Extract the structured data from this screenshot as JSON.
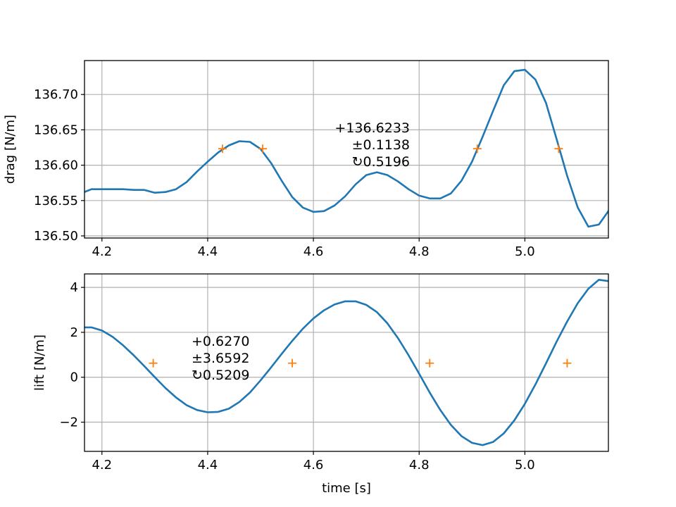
{
  "chart_data": [
    {
      "type": "line",
      "title": "",
      "xlabel": "",
      "ylabel": "drag [N/m]",
      "xlim": [
        4.167,
        5.158
      ],
      "ylim": [
        136.497,
        136.748
      ],
      "xticks": [
        4.2,
        4.4,
        4.6,
        4.8,
        5.0
      ],
      "xtick_labels": [
        "4.2",
        "4.4",
        "4.6",
        "4.8",
        "5.0"
      ],
      "yticks": [
        136.5,
        136.55,
        136.6,
        136.65,
        136.7
      ],
      "ytick_labels": [
        "136.50",
        "136.55",
        "136.60",
        "136.65",
        "136.70"
      ],
      "grid": true,
      "line_color": "#1f77b4",
      "marker_color": "#ff7f0e",
      "series": [
        {
          "x": [
            4.167,
            4.18,
            4.2,
            4.22,
            4.24,
            4.26,
            4.28,
            4.3,
            4.32,
            4.34,
            4.36,
            4.38,
            4.4,
            4.42,
            4.44,
            4.46,
            4.48,
            4.5,
            4.52,
            4.54,
            4.56,
            4.58,
            4.6,
            4.62,
            4.64,
            4.66,
            4.68,
            4.7,
            4.72,
            4.74,
            4.76,
            4.78,
            4.8,
            4.82,
            4.84,
            4.86,
            4.88,
            4.9,
            4.92,
            4.94,
            4.96,
            4.98,
            5.0,
            5.02,
            5.04,
            5.06,
            5.08,
            5.1,
            5.12,
            5.14,
            5.158
          ],
          "y": [
            136.562,
            136.566,
            136.566,
            136.566,
            136.566,
            136.565,
            136.565,
            136.561,
            136.562,
            136.566,
            136.576,
            136.591,
            136.605,
            136.618,
            136.628,
            136.634,
            136.633,
            136.623,
            136.603,
            136.578,
            136.555,
            136.54,
            136.534,
            136.535,
            136.543,
            136.556,
            136.573,
            136.586,
            136.59,
            136.586,
            136.577,
            136.566,
            136.557,
            136.553,
            136.553,
            136.56,
            136.578,
            136.605,
            136.64,
            136.677,
            136.713,
            136.733,
            136.735,
            136.721,
            136.688,
            136.637,
            136.585,
            136.54,
            136.513,
            136.516,
            136.535
          ]
        }
      ],
      "markers": {
        "x": [
          4.428,
          4.504,
          4.91,
          5.064
        ],
        "y": [
          136.6233,
          136.6233,
          136.6233,
          136.6233
        ]
      },
      "annotation": [
        "+136.6233",
        "±0.1138",
        "↻0.5196"
      ]
    },
    {
      "type": "line",
      "title": "",
      "xlabel": "time [s]",
      "ylabel": "lift [N/m]",
      "xlim": [
        4.167,
        5.158
      ],
      "ylim": [
        -3.3,
        4.6
      ],
      "xticks": [
        4.2,
        4.4,
        4.6,
        4.8,
        5.0
      ],
      "xtick_labels": [
        "4.2",
        "4.4",
        "4.6",
        "4.8",
        "5.0"
      ],
      "yticks": [
        -2,
        0,
        2,
        4
      ],
      "ytick_labels": [
        "−2",
        "0",
        "2",
        "4"
      ],
      "grid": true,
      "line_color": "#1f77b4",
      "marker_color": "#ff7f0e",
      "series": [
        {
          "x": [
            4.167,
            4.18,
            4.2,
            4.22,
            4.24,
            4.26,
            4.28,
            4.3,
            4.32,
            4.34,
            4.36,
            4.38,
            4.4,
            4.42,
            4.44,
            4.46,
            4.48,
            4.5,
            4.52,
            4.54,
            4.56,
            4.58,
            4.6,
            4.62,
            4.64,
            4.66,
            4.68,
            4.7,
            4.72,
            4.74,
            4.76,
            4.78,
            4.8,
            4.82,
            4.84,
            4.86,
            4.88,
            4.9,
            4.92,
            4.94,
            4.96,
            4.98,
            5.0,
            5.02,
            5.04,
            5.06,
            5.08,
            5.1,
            5.12,
            5.14,
            5.158
          ],
          "y": [
            2.22,
            2.22,
            2.08,
            1.8,
            1.42,
            0.98,
            0.5,
            0.0,
            -0.48,
            -0.9,
            -1.24,
            -1.46,
            -1.56,
            -1.54,
            -1.4,
            -1.1,
            -0.68,
            -0.14,
            0.44,
            1.04,
            1.62,
            2.16,
            2.62,
            2.98,
            3.24,
            3.38,
            3.38,
            3.22,
            2.9,
            2.4,
            1.74,
            0.98,
            0.16,
            -0.68,
            -1.46,
            -2.12,
            -2.62,
            -2.92,
            -3.02,
            -2.88,
            -2.5,
            -1.92,
            -1.18,
            -0.32,
            0.62,
            1.58,
            2.48,
            3.3,
            3.94,
            4.34,
            4.28
          ]
        }
      ],
      "markers": {
        "x": [
          4.297,
          4.56,
          4.82,
          5.08
        ],
        "y": [
          0.627,
          0.627,
          0.627,
          0.627
        ]
      },
      "annotation": [
        "+0.6270",
        "±3.6592",
        "↻0.5209"
      ]
    }
  ]
}
